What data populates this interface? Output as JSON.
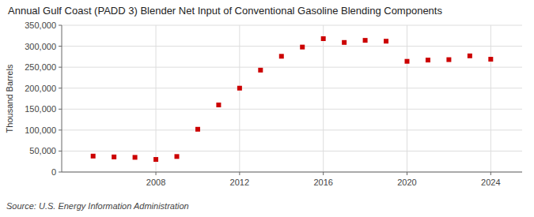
{
  "chart_data": {
    "type": "scatter",
    "title": "Annual Gulf Coast (PADD 3) Blender Net Input of Conventional Gasoline Blending Components",
    "ylabel": "Thousand Barrels",
    "annotation": "Source: U.S. Energy Information Administration",
    "x": [
      2005,
      2006,
      2007,
      2008,
      2009,
      2010,
      2011,
      2012,
      2013,
      2014,
      2015,
      2016,
      2017,
      2018,
      2019,
      2020,
      2021,
      2022,
      2023,
      2024
    ],
    "values": [
      38000,
      36000,
      35000,
      30000,
      37000,
      102000,
      160000,
      200000,
      243000,
      276000,
      298000,
      318000,
      309000,
      314000,
      312000,
      264000,
      267000,
      268000,
      277000,
      269000
    ],
    "color": "#cc0000",
    "marker": "square",
    "xlim": [
      2003.5,
      2025.5
    ],
    "xticks": [
      2008,
      2012,
      2016,
      2020,
      2024
    ],
    "ylim": [
      0,
      350000
    ],
    "yticks": [
      0,
      {
        "value": 50000,
        "label": "50,000"
      },
      {
        "value": 100000,
        "label": "100,000"
      },
      {
        "value": 150000,
        "label": "150,000"
      },
      {
        "value": 200000,
        "label": "200,000"
      },
      {
        "value": 250000,
        "label": "250,000"
      },
      {
        "value": 300000,
        "label": "300,000"
      },
      {
        "value": 350000,
        "label": "350,000"
      }
    ],
    "grid": true
  }
}
